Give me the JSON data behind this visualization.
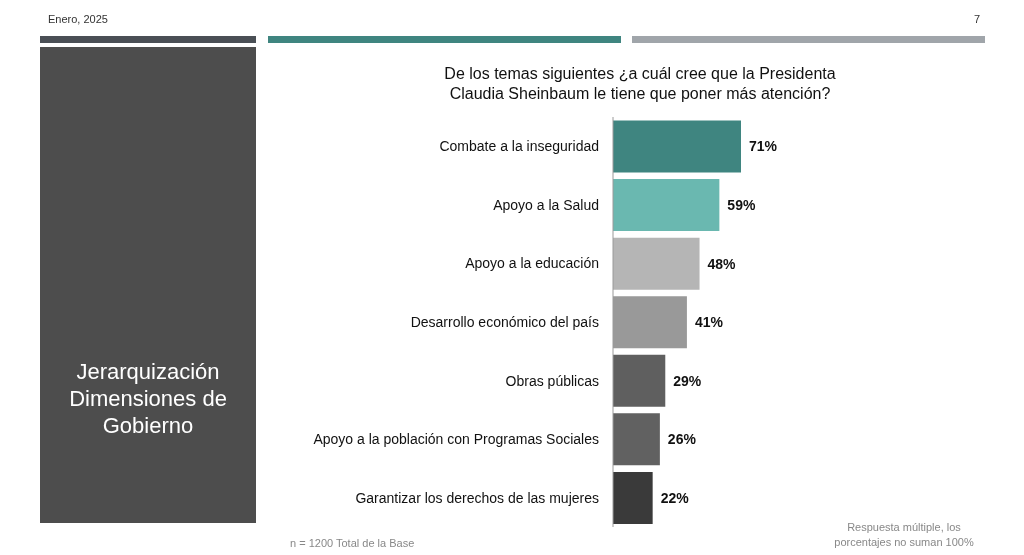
{
  "chart_data": {
    "type": "bar",
    "orientation": "horizontal",
    "title": "De los temas siguientes ¿a cuál cree que la Presidenta Claudia Sheinbaum le tiene que poner más atención?",
    "subtitle": "Jerarquización Dimensiones de Gobierno",
    "categories": [
      "Combate a la inseguridad",
      "Apoyo a la Salud",
      "Apoyo a la educación",
      "Desarrollo económico del país",
      "Obras públicas",
      "Apoyo a la población con Programas Sociales",
      "Garantizar los derechos de las mujeres"
    ],
    "values": [
      71,
      59,
      48,
      41,
      29,
      26,
      22
    ],
    "colors": [
      "#3f8580",
      "#6ab8b0",
      "#b5b5b5",
      "#999999",
      "#5f5f5f",
      "#616161",
      "#3a3a3a"
    ],
    "value_labels": [
      "71%",
      "59%",
      "48%",
      "41%",
      "29%",
      "26%",
      "22%"
    ],
    "annotations": [
      "Enero, 2025",
      "7",
      "n = 1200 Total de la Base",
      "Respuesta múltiple, los porcentajes no suman 100%"
    ]
  }
}
